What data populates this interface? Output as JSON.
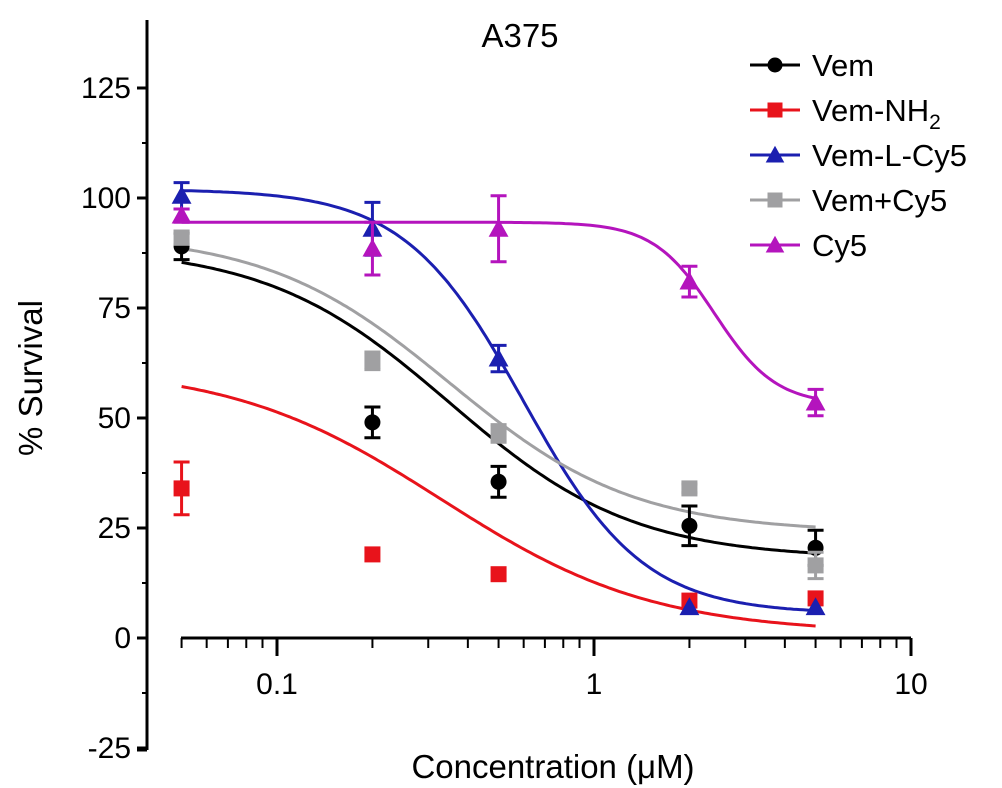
{
  "chart_data": {
    "type": "scatter",
    "title": "A375",
    "xlabel": "Concentration (μM)",
    "ylabel": "% Survival",
    "xscale": "log",
    "xlim": [
      0.04,
      10
    ],
    "ylim": [
      -25,
      140
    ],
    "x_ticks": [
      {
        "value": 0.1,
        "label": "0.1"
      },
      {
        "value": 1,
        "label": "1"
      },
      {
        "value": 10,
        "label": "10"
      }
    ],
    "y_ticks": [
      {
        "value": -25,
        "label": "-25"
      },
      {
        "value": 0,
        "label": "0"
      },
      {
        "value": 25,
        "label": "25"
      },
      {
        "value": 50,
        "label": "50"
      },
      {
        "value": 75,
        "label": "75"
      },
      {
        "value": 100,
        "label": "100"
      },
      {
        "value": 125,
        "label": "125"
      }
    ],
    "grid": false,
    "legend_position": "top-right",
    "series": [
      {
        "name": "Vem",
        "name_sub": "",
        "color": "#000000",
        "marker": "circle",
        "x": [
          0.05,
          0.2,
          0.5,
          2,
          5
        ],
        "y": [
          89,
          49,
          35.5,
          25.5,
          20.5
        ],
        "err": [
          3,
          3.5,
          3.5,
          4.5,
          4
        ],
        "fit": {
          "top": 89,
          "bottom": 18,
          "ec50": 0.35,
          "hill": 1.5
        }
      },
      {
        "name": "Vem-NH",
        "name_sub": "2",
        "color": "#e8131b",
        "marker": "square",
        "x": [
          0.05,
          0.2,
          0.5,
          2,
          5
        ],
        "y": [
          34,
          19,
          14.5,
          8.5,
          9
        ],
        "err": [
          6,
          0,
          0,
          0,
          0
        ],
        "fit": {
          "top": 62,
          "bottom": 1,
          "ec50": 0.33,
          "hill": 1.3
        }
      },
      {
        "name": "Vem-L-Cy5",
        "name_sub": "",
        "color": "#1b1fb0",
        "marker": "triangle",
        "x": [
          0.05,
          0.2,
          0.5,
          2,
          5
        ],
        "y": [
          100.5,
          93,
          63.5,
          7,
          7
        ],
        "err": [
          3,
          6,
          3,
          0,
          0
        ],
        "fit": {
          "top": 102,
          "bottom": 5.5,
          "ec50": 0.6,
          "hill": 2.3
        }
      },
      {
        "name": "Vem+Cy5",
        "name_sub": "",
        "color": "#a0a0a2",
        "marker": "square",
        "x": [
          0.05,
          0.2,
          0.5,
          2,
          5
        ],
        "y": [
          91,
          63,
          46.5,
          34,
          16.5
        ],
        "err": [
          1.5,
          2,
          2,
          1,
          3
        ],
        "fit": {
          "top": 92,
          "bottom": 24,
          "ec50": 0.35,
          "hill": 1.5
        }
      },
      {
        "name": "Cy5",
        "name_sub": "",
        "color": "#b414bd",
        "marker": "triangle",
        "x": [
          0.05,
          0.2,
          0.5,
          2,
          5
        ],
        "y": [
          96,
          88.5,
          93,
          81,
          53.5
        ],
        "err": [
          1.5,
          6,
          7.5,
          3.5,
          3
        ],
        "fit": {
          "top": 94.5,
          "bottom": 53,
          "ec50": 2.4,
          "hill": 4.5
        }
      }
    ]
  }
}
